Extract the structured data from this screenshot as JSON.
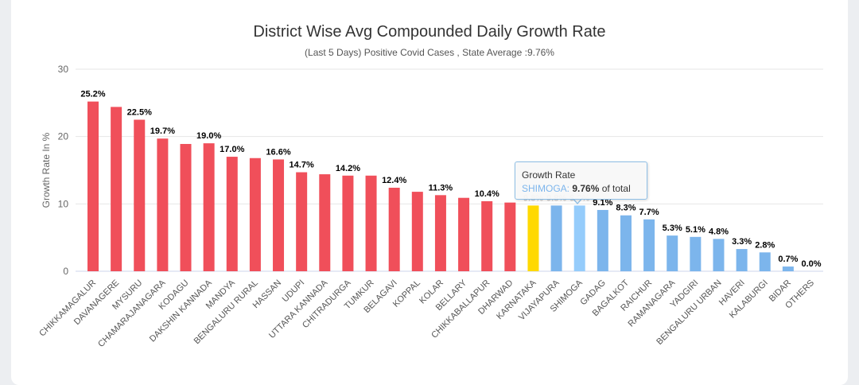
{
  "chart_data": {
    "type": "bar",
    "title": "District Wise Avg Compounded Daily Growth Rate",
    "subtitle": "(Last 5 Days) Positive Covid Cases , State Average :9.76%",
    "xlabel": "",
    "ylabel": "Growth Rate In %",
    "ylim": [
      0,
      30
    ],
    "yticks": [
      "0",
      "10",
      "20",
      "30"
    ],
    "grid": true,
    "colors": {
      "above": "#f04f5a",
      "state": "#ffd900",
      "below": "#7cb5ec",
      "hover": "#95ccfb"
    },
    "categories": [
      "CHIKKAMAGALUR",
      "DAVANAGERE",
      "MYSURU",
      "CHAMARAJANAGARA",
      "KODAGU",
      "DAKSHIN KANNADA",
      "MANDYA",
      "BENGALURU RURAL",
      "HASSAN",
      "UDUPI",
      "UTTARA KANNADA",
      "CHITRADURGA",
      "TUMKUR",
      "BELAGAVI",
      "KOPPAL",
      "KOLAR",
      "BELLARY",
      "CHIKKABALLAPUR",
      "DHARWAD",
      "KARNATAKA",
      "VIJAYAPURA",
      "SHIMOGA",
      "GADAG",
      "BAGALKOT",
      "RAICHUR",
      "RAMANAGARA",
      "YADGIRI",
      "BENGALURU URBAN",
      "HAVERI",
      "KALABURGI",
      "BIDAR",
      "OTHERS"
    ],
    "values": [
      25.2,
      24.4,
      22.5,
      19.7,
      18.9,
      19.0,
      17.0,
      16.8,
      16.6,
      14.7,
      14.4,
      14.2,
      14.2,
      12.4,
      11.8,
      11.3,
      10.9,
      10.4,
      10.2,
      9.76,
      9.76,
      9.76,
      9.1,
      8.3,
      7.7,
      5.3,
      5.1,
      4.8,
      3.3,
      2.8,
      0.7,
      0.0
    ],
    "data_labels": [
      "25.2%",
      "",
      "22.5%",
      "19.7%",
      "",
      "19.0%",
      "17.0%",
      "",
      "16.6%",
      "14.7%",
      "",
      "14.2%",
      "",
      "12.4%",
      "",
      "11.3%",
      "",
      "10.4%",
      "",
      "9.8%",
      "9.8%",
      "9.8%",
      "9.1%",
      "8.3%",
      "7.7%",
      "5.3%",
      "5.1%",
      "4.8%",
      "3.3%",
      "2.8%",
      "0.7%",
      "0.0%"
    ],
    "bar_group": [
      "above",
      "above",
      "above",
      "above",
      "above",
      "above",
      "above",
      "above",
      "above",
      "above",
      "above",
      "above",
      "above",
      "above",
      "above",
      "above",
      "above",
      "above",
      "above",
      "state",
      "below",
      "hover",
      "below",
      "below",
      "below",
      "below",
      "below",
      "below",
      "below",
      "below",
      "below",
      "below"
    ],
    "tooltip": {
      "title": "Growth Rate",
      "name": "SHIMOGA",
      "value": "9.76%",
      "suffix": " of total"
    }
  }
}
